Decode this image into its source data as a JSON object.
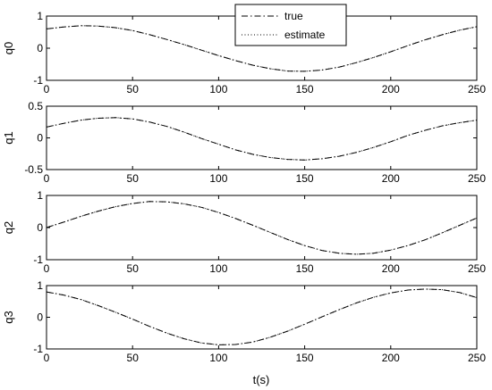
{
  "chart_data": {
    "type": "line",
    "xlabel": "t(s)",
    "legend": {
      "placement": "top-center",
      "entries": [
        {
          "name": "true",
          "style": "dash-dot"
        },
        {
          "name": "estimate",
          "style": "dotted"
        }
      ]
    },
    "line_color": "#000000",
    "grid": false,
    "subplots": [
      {
        "ylabel": "q0",
        "xlim": [
          0,
          250
        ],
        "ylim": [
          -1,
          1
        ],
        "xticks": [
          0,
          50,
          100,
          150,
          200,
          250
        ],
        "yticks": [
          -1,
          0,
          1
        ],
        "x": [
          0,
          10,
          20,
          30,
          40,
          50,
          60,
          70,
          80,
          90,
          100,
          110,
          120,
          130,
          140,
          150,
          160,
          170,
          180,
          190,
          200,
          210,
          220,
          230,
          240,
          250
        ],
        "series": [
          {
            "name": "true",
            "values": [
              0.6,
              0.66,
              0.7,
              0.69,
              0.64,
              0.55,
              0.42,
              0.27,
              0.11,
              -0.06,
              -0.23,
              -0.39,
              -0.53,
              -0.64,
              -0.71,
              -0.72,
              -0.68,
              -0.59,
              -0.45,
              -0.29,
              -0.11,
              0.08,
              0.26,
              0.42,
              0.56,
              0.67
            ]
          },
          {
            "name": "estimate",
            "values": [
              0.6,
              0.66,
              0.7,
              0.69,
              0.64,
              0.55,
              0.42,
              0.27,
              0.11,
              -0.06,
              -0.23,
              -0.39,
              -0.53,
              -0.64,
              -0.71,
              -0.72,
              -0.68,
              -0.59,
              -0.45,
              -0.29,
              -0.11,
              0.08,
              0.26,
              0.42,
              0.56,
              0.67
            ]
          }
        ]
      },
      {
        "ylabel": "q1",
        "xlim": [
          0,
          250
        ],
        "ylim": [
          -0.5,
          0.5
        ],
        "xticks": [
          0,
          50,
          100,
          150,
          200,
          250
        ],
        "yticks": [
          -0.5,
          0,
          0.5
        ],
        "x": [
          0,
          10,
          20,
          30,
          40,
          50,
          60,
          70,
          80,
          90,
          100,
          110,
          120,
          130,
          140,
          150,
          160,
          170,
          180,
          190,
          200,
          210,
          220,
          230,
          240,
          250
        ],
        "series": [
          {
            "name": "true",
            "values": [
              0.17,
              0.23,
              0.28,
              0.31,
              0.32,
              0.3,
              0.25,
              0.18,
              0.09,
              -0.01,
              -0.1,
              -0.19,
              -0.26,
              -0.31,
              -0.34,
              -0.35,
              -0.33,
              -0.29,
              -0.23,
              -0.15,
              -0.06,
              0.04,
              0.12,
              0.19,
              0.24,
              0.28
            ]
          },
          {
            "name": "estimate",
            "values": [
              0.17,
              0.23,
              0.28,
              0.31,
              0.32,
              0.3,
              0.25,
              0.18,
              0.09,
              -0.01,
              -0.1,
              -0.19,
              -0.26,
              -0.31,
              -0.34,
              -0.35,
              -0.33,
              -0.29,
              -0.23,
              -0.15,
              -0.06,
              0.04,
              0.12,
              0.19,
              0.24,
              0.28
            ]
          }
        ]
      },
      {
        "ylabel": "q2",
        "xlim": [
          0,
          250
        ],
        "ylim": [
          -1,
          1
        ],
        "xticks": [
          0,
          50,
          100,
          150,
          200,
          250
        ],
        "yticks": [
          -1,
          0,
          1
        ],
        "x": [
          0,
          10,
          20,
          30,
          40,
          50,
          60,
          70,
          80,
          90,
          100,
          110,
          120,
          130,
          140,
          150,
          160,
          170,
          180,
          190,
          200,
          210,
          220,
          230,
          240,
          250
        ],
        "series": [
          {
            "name": "true",
            "values": [
              0.0,
              0.17,
              0.35,
              0.51,
              0.65,
              0.75,
              0.81,
              0.8,
              0.74,
              0.63,
              0.47,
              0.28,
              0.07,
              -0.15,
              -0.37,
              -0.56,
              -0.71,
              -0.8,
              -0.83,
              -0.8,
              -0.7,
              -0.56,
              -0.38,
              -0.16,
              0.07,
              0.3
            ]
          },
          {
            "name": "estimate",
            "values": [
              0.0,
              0.17,
              0.35,
              0.51,
              0.65,
              0.75,
              0.81,
              0.8,
              0.74,
              0.63,
              0.47,
              0.28,
              0.07,
              -0.15,
              -0.37,
              -0.56,
              -0.71,
              -0.8,
              -0.83,
              -0.8,
              -0.7,
              -0.56,
              -0.38,
              -0.16,
              0.07,
              0.3
            ]
          }
        ]
      },
      {
        "ylabel": "q3",
        "xlim": [
          0,
          250
        ],
        "ylim": [
          -1,
          1
        ],
        "xticks": [
          0,
          50,
          100,
          150,
          200,
          250
        ],
        "yticks": [
          -1,
          0,
          1
        ],
        "x": [
          0,
          10,
          20,
          30,
          40,
          50,
          60,
          70,
          80,
          90,
          100,
          110,
          120,
          130,
          140,
          150,
          160,
          170,
          180,
          190,
          200,
          210,
          220,
          230,
          240,
          250
        ],
        "series": [
          {
            "name": "true",
            "values": [
              0.8,
              0.7,
              0.56,
              0.37,
              0.16,
              -0.06,
              -0.29,
              -0.5,
              -0.68,
              -0.81,
              -0.87,
              -0.86,
              -0.78,
              -0.63,
              -0.44,
              -0.22,
              0.01,
              0.24,
              0.45,
              0.63,
              0.77,
              0.86,
              0.89,
              0.87,
              0.78,
              0.62
            ]
          },
          {
            "name": "estimate",
            "values": [
              0.8,
              0.7,
              0.56,
              0.37,
              0.16,
              -0.06,
              -0.29,
              -0.5,
              -0.68,
              -0.81,
              -0.87,
              -0.86,
              -0.78,
              -0.63,
              -0.44,
              -0.22,
              0.01,
              0.24,
              0.45,
              0.63,
              0.77,
              0.86,
              0.89,
              0.87,
              0.78,
              0.62
            ]
          }
        ]
      }
    ]
  }
}
